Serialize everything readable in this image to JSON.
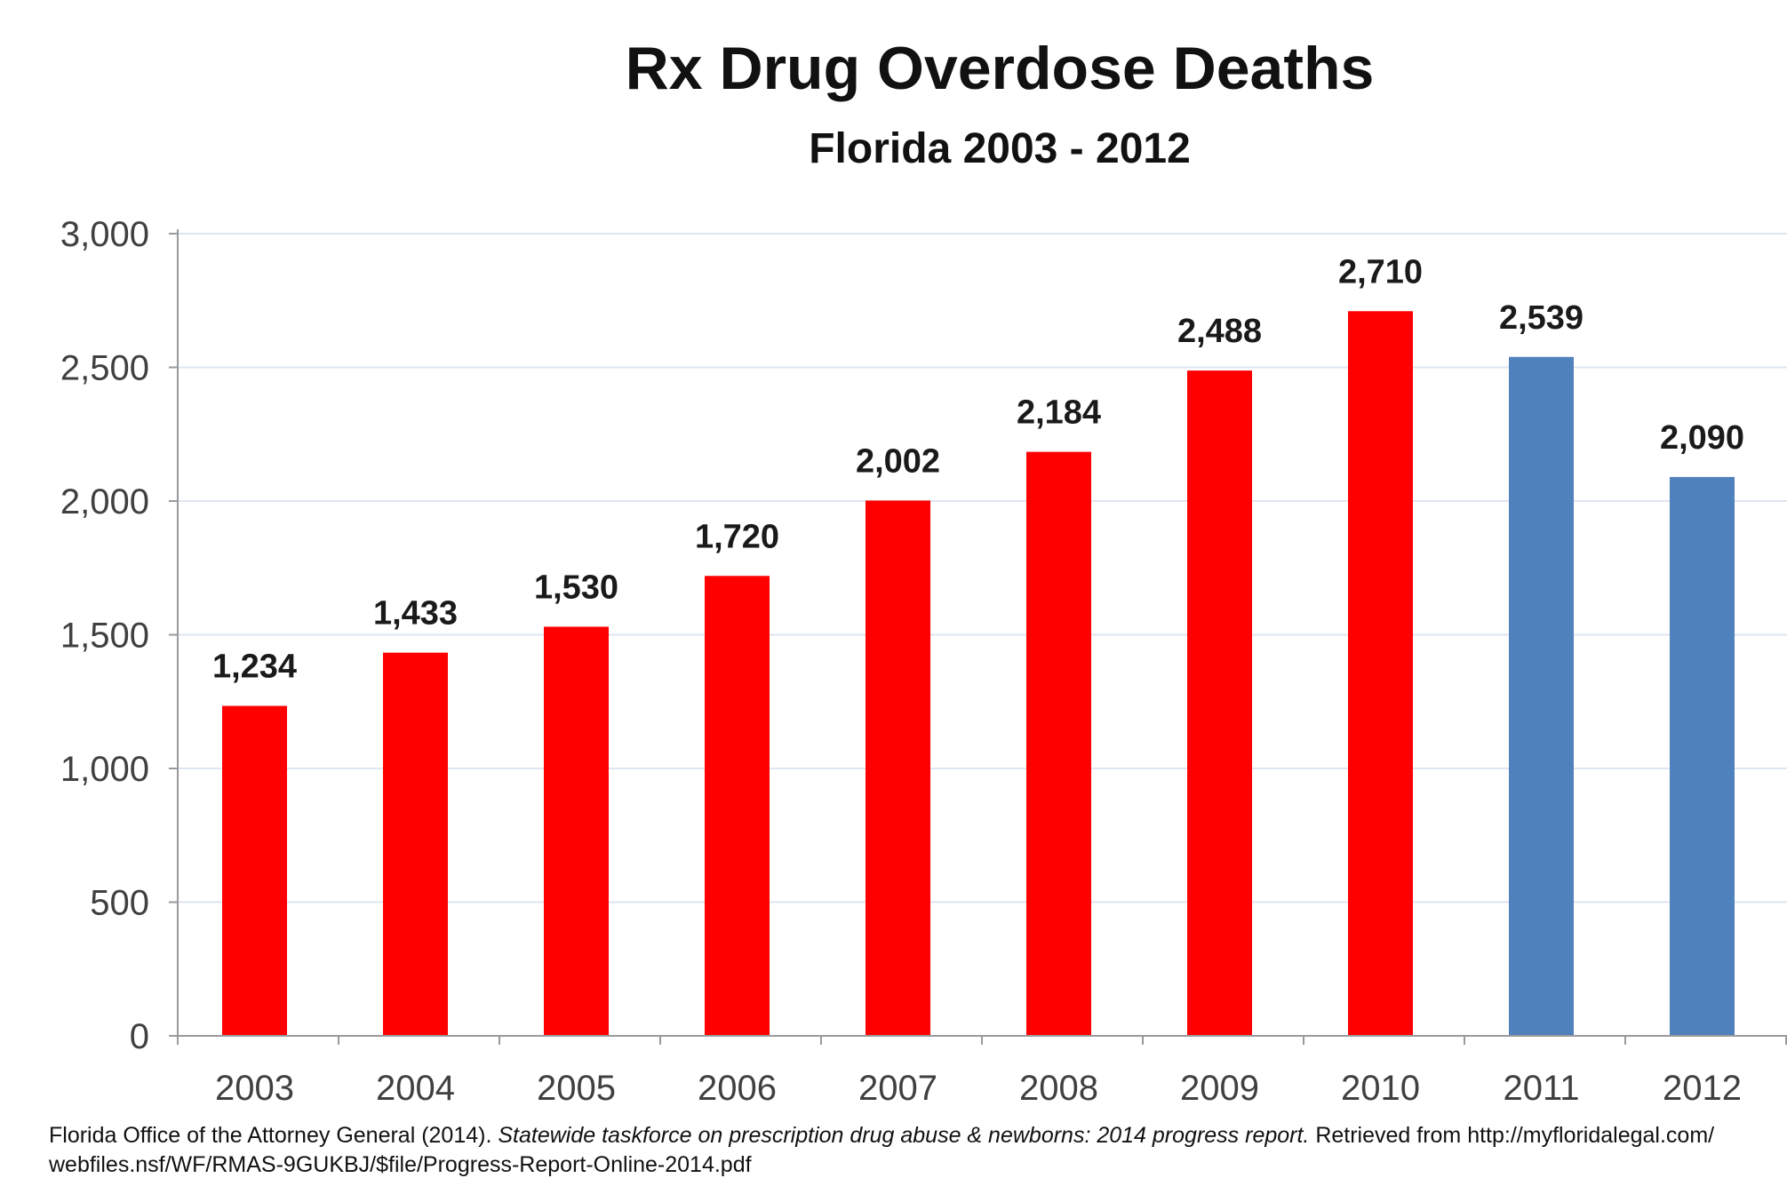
{
  "chart_data": {
    "type": "bar",
    "title": "Rx Drug Overdose Deaths",
    "subtitle": "Florida 2003 - 2012",
    "xlabel": "",
    "ylabel": "",
    "ylim": [
      0,
      3000
    ],
    "yticks": [
      0,
      500,
      1000,
      1500,
      2000,
      2500,
      3000
    ],
    "ytick_labels": [
      "0",
      "500",
      "1,000",
      "1,500",
      "2,000",
      "2,500",
      "3,000"
    ],
    "categories": [
      "2003",
      "2004",
      "2005",
      "2006",
      "2007",
      "2008",
      "2009",
      "2010",
      "2011",
      "2012"
    ],
    "values": [
      1234,
      1433,
      1530,
      1720,
      2002,
      2184,
      2488,
      2710,
      2539,
      2090
    ],
    "value_labels": [
      "1,234",
      "1,433",
      "1,530",
      "1,720",
      "2,002",
      "2,184",
      "2,488",
      "2,710",
      "2,539",
      "2,090"
    ],
    "bar_colors": [
      "#ff0000",
      "#ff0000",
      "#ff0000",
      "#ff0000",
      "#ff0000",
      "#ff0000",
      "#ff0000",
      "#ff0000",
      "#4f81bd",
      "#4f81bd"
    ],
    "grid": true,
    "grid_color": "#dde6f2",
    "axis_color": "#9a9a9a"
  },
  "citation": {
    "part1": "Florida Office of the Attorney General (2014). ",
    "italic": "Statewide taskforce on prescription drug abuse & newborns: 2014 progress report.",
    "part2": " Retrieved from http://myfloridalegal.com/",
    "line2": "webfiles.nsf/WF/RMAS-9GUKBJ/$file/Progress-Report-Online-2014.pdf"
  }
}
